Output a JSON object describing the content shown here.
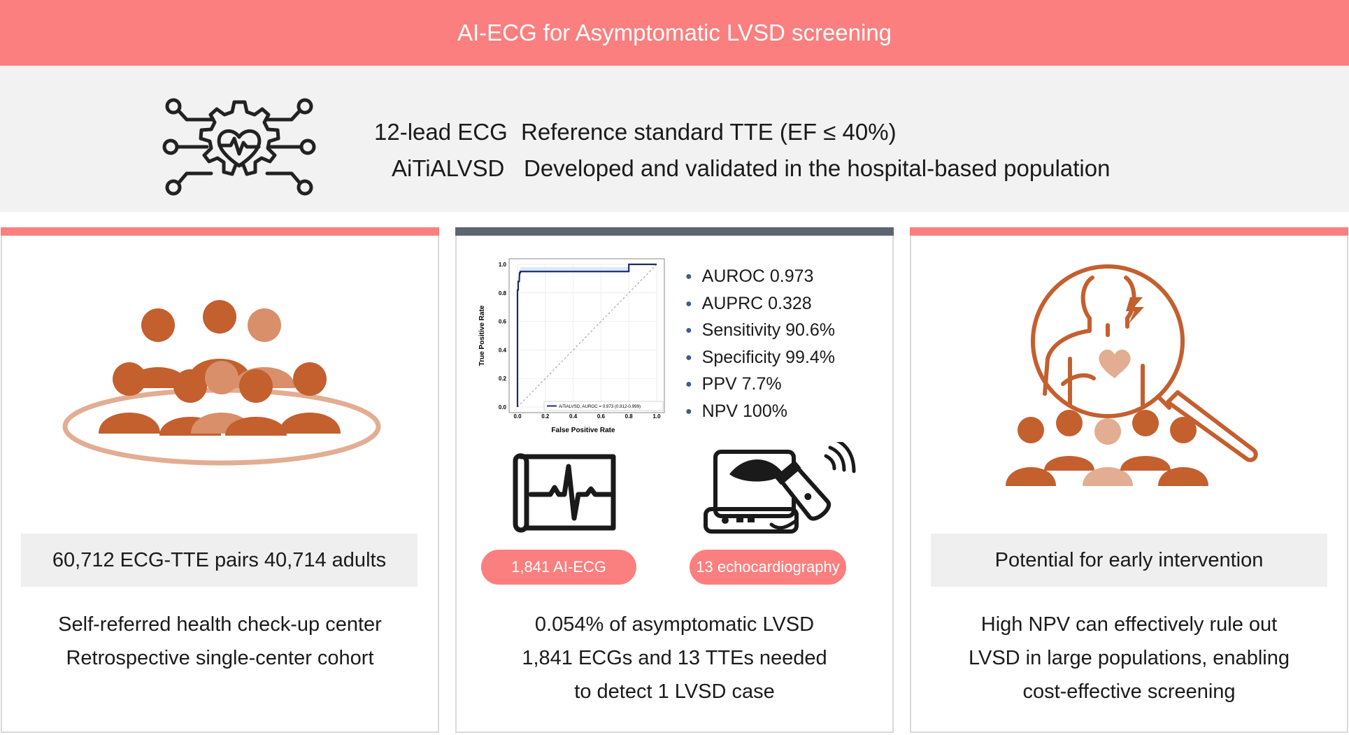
{
  "header": {
    "title": "AI-ECG for Asymptomatic LVSD screening"
  },
  "banner": {
    "row1_left": "12-lead ECG",
    "row1_right": "Reference standard TTE (EF ≤ 40%)",
    "row2_left": "AiTiALVSD",
    "row2_right": "Developed and validated in the hospital-based population",
    "icon": "gear-heart-network-icon"
  },
  "colors": {
    "accent": "#fb7f7f",
    "dark_bar": "#5d6570",
    "people_dark": "#c45f2e",
    "people_light": "#d98f6a",
    "people_pale": "#e2ad92",
    "roc_line": "#1f2a6b"
  },
  "left_panel": {
    "icon": "people-group-icon",
    "box_text": "60,712 ECG-TTE pairs 40,714 adults",
    "desc_lines": [
      "Self-referred health check-up center",
      "Retrospective single-center cohort"
    ]
  },
  "middle_panel": {
    "metrics": [
      "AUROC 0.973",
      "AUPRC 0.328",
      "Sensitivity 90.6%",
      "Specificity 99.4%",
      "PPV 7.7%",
      "NPV 100%"
    ],
    "ecg_icon": "ecg-monitor-icon",
    "echo_icon": "ultrasound-machine-icon",
    "pill_ecg": "1,841 AI-ECG",
    "pill_echo": "13 echocardiography",
    "desc_lines": [
      "0.054% of asymptomatic LVSD",
      "1,841 ECGs and 13 TTEs needed",
      "to detect 1 LVSD case"
    ]
  },
  "right_panel": {
    "icon": "magnifier-patient-icon",
    "box_text": "Potential for early intervention",
    "desc_lines": [
      "High NPV can effectively rule out",
      "LVSD in large populations, enabling",
      "cost-effective screening"
    ]
  },
  "chart_data": {
    "type": "line",
    "xlabel": "False Positive Rate",
    "ylabel": "True Positive Rate",
    "xlim": [
      0,
      1
    ],
    "ylim": [
      0,
      1
    ],
    "xticks": [
      "0.0",
      "0.2",
      "0.4",
      "0.6",
      "0.8",
      "1.0"
    ],
    "yticks": [
      "0.0",
      "0.2",
      "0.4",
      "0.6",
      "0.8",
      "1.0"
    ],
    "legend": "AiTiALVSD, AUROC = 0.973 (0.912-0.999)",
    "legend_position": "lower right",
    "series": [
      {
        "name": "AiTiALVSD, AUROC = 0.973 (0.912-0.999)",
        "x": [
          0.0,
          0.0,
          0.005,
          0.005,
          0.012,
          0.015,
          0.02,
          0.02,
          0.8,
          0.8,
          1.0
        ],
        "y": [
          0.0,
          0.82,
          0.82,
          0.88,
          0.88,
          0.94,
          0.94,
          0.95,
          0.95,
          1.0,
          1.0
        ],
        "ci_lower": 0.94,
        "ci_upper": 0.98
      },
      {
        "name": "",
        "x": [
          0,
          1
        ],
        "y": [
          0,
          1
        ],
        "style": "dashed-diagonal"
      }
    ]
  }
}
